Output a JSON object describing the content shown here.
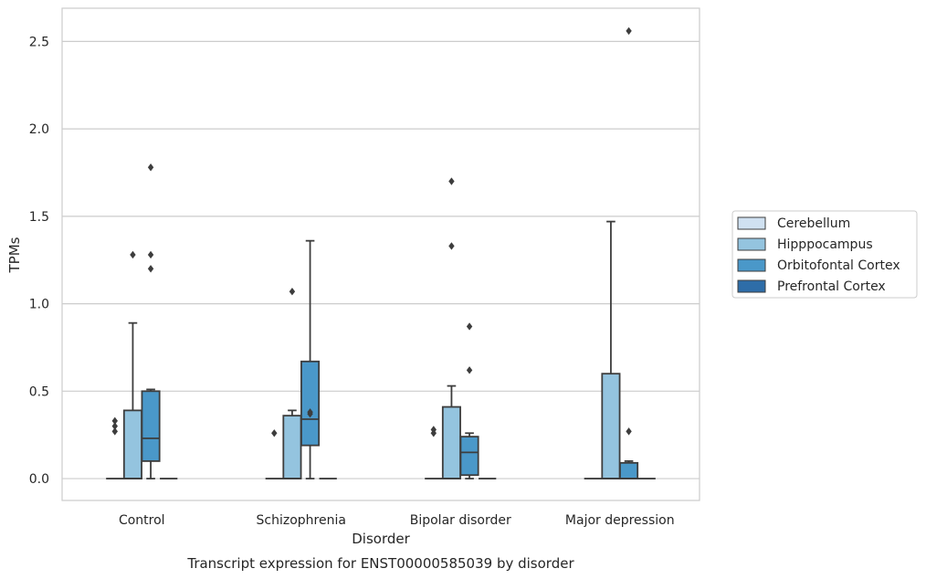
{
  "chart_data": {
    "type": "box",
    "caption": "Transcript expression for ENST00000585039 by disorder",
    "xlabel": "Disorder",
    "ylabel": "TPMs",
    "ylim": [
      -0.125,
      2.69
    ],
    "yticks": [
      0.0,
      0.5,
      1.0,
      1.5,
      2.0,
      2.5
    ],
    "ytick_labels": [
      "0.0",
      "0.5",
      "1.0",
      "1.5",
      "2.0",
      "2.5"
    ],
    "grid": "horizontal",
    "legend_position": "outside-right",
    "categories": [
      "Control",
      "Schizophrenia",
      "Bipolar disorder",
      "Major depression"
    ],
    "series": [
      {
        "name": "Cerebellum",
        "color": "#d0e1f1",
        "boxes": [
          {
            "min": 0,
            "q1": 0,
            "median": 0,
            "q3": 0,
            "max": 0,
            "outliers": [
              0.27,
              0.3,
              0.33
            ]
          },
          {
            "min": 0,
            "q1": 0,
            "median": 0,
            "q3": 0,
            "max": 0,
            "outliers": [
              0.26
            ]
          },
          {
            "min": 0,
            "q1": 0,
            "median": 0,
            "q3": 0,
            "max": 0,
            "outliers": [
              0.26,
              0.28
            ]
          },
          {
            "min": 0,
            "q1": 0,
            "median": 0,
            "q3": 0,
            "max": 0,
            "outliers": []
          }
        ]
      },
      {
        "name": "Hipppocampus",
        "color": "#94c4df",
        "boxes": [
          {
            "min": 0,
            "q1": 0,
            "median": 0,
            "q3": 0.39,
            "max": 0.89,
            "outliers": [
              1.28
            ]
          },
          {
            "min": 0,
            "q1": 0,
            "median": 0,
            "q3": 0.36,
            "max": 0.39,
            "outliers": [
              1.07
            ]
          },
          {
            "min": 0,
            "q1": 0,
            "median": 0,
            "q3": 0.41,
            "max": 0.53,
            "outliers": [
              1.33,
              1.7
            ]
          },
          {
            "min": 0,
            "q1": 0,
            "median": 0,
            "q3": 0.6,
            "max": 1.47,
            "outliers": []
          }
        ]
      },
      {
        "name": "Orbitofontal Cortex",
        "color": "#4a98c9",
        "boxes": [
          {
            "min": 0,
            "q1": 0.1,
            "median": 0.23,
            "q3": 0.5,
            "max": 0.51,
            "outliers": [
              1.2,
              1.28,
              1.78
            ]
          },
          {
            "min": 0,
            "q1": 0.19,
            "median": 0.34,
            "q3": 0.67,
            "max": 1.36,
            "outliers": [
              0.37,
              0.38
            ]
          },
          {
            "min": 0,
            "q1": 0.02,
            "median": 0.15,
            "q3": 0.24,
            "max": 0.26,
            "outliers": [
              0.62,
              0.87
            ]
          },
          {
            "min": 0,
            "q1": 0,
            "median": 0,
            "q3": 0.09,
            "max": 0.1,
            "outliers": [
              0.27,
              2.56
            ]
          }
        ]
      },
      {
        "name": "Prefrontal Cortex",
        "color": "#2e6da8",
        "boxes": [
          {
            "min": 0,
            "q1": 0,
            "median": 0,
            "q3": 0,
            "max": 0,
            "outliers": []
          },
          {
            "min": 0,
            "q1": 0,
            "median": 0,
            "q3": 0,
            "max": 0,
            "outliers": []
          },
          {
            "min": 0,
            "q1": 0,
            "median": 0,
            "q3": 0,
            "max": 0,
            "outliers": []
          },
          {
            "min": 0,
            "q1": 0,
            "median": 0,
            "q3": 0,
            "max": 0,
            "outliers": []
          }
        ]
      }
    ]
  }
}
